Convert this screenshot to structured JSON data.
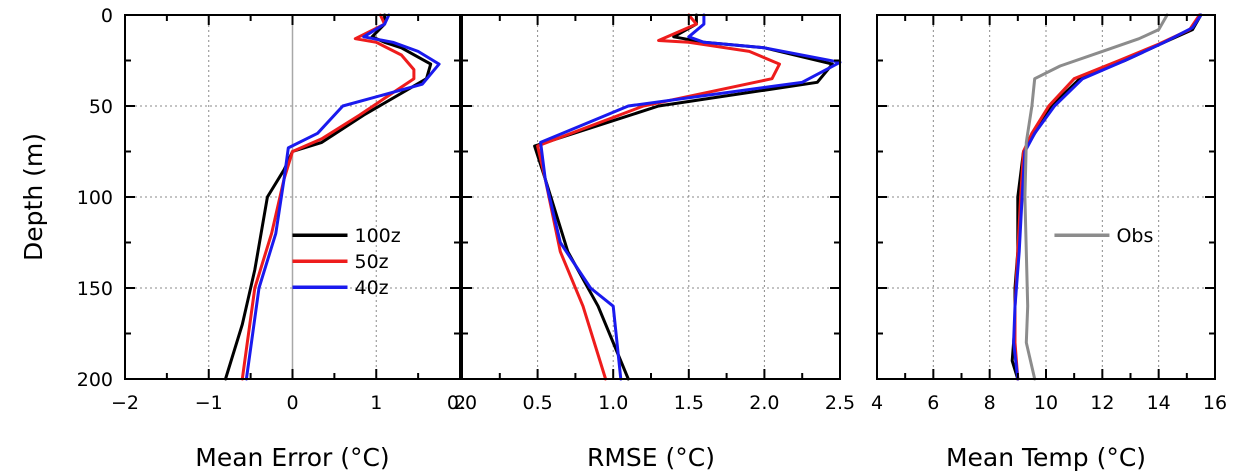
{
  "colors": {
    "100z": "#000000",
    "50z": "#ee1c1c",
    "40z": "#1a1aee",
    "Obs": "#8c8c8c"
  },
  "y_axis": {
    "title": "Depth (m)",
    "lim": [
      0,
      200
    ],
    "ticks": [
      0,
      50,
      100,
      150,
      200
    ],
    "tick_labels": [
      "0",
      "50",
      "100",
      "150",
      "200"
    ],
    "minor_ticks": [
      25,
      75,
      125,
      175
    ],
    "inverted": true
  },
  "chart_data": [
    {
      "type": "line",
      "title": "",
      "xlabel": "Mean Error (°C)",
      "ylabel": "Depth (m)",
      "xlim": [
        -2,
        2
      ],
      "ylim": [
        200,
        0
      ],
      "x_ticks": [
        -2,
        -1,
        0,
        1,
        2
      ],
      "x_tick_labels": [
        "−2",
        "−1",
        "0",
        "1",
        "2"
      ],
      "x_minor_ticks": [
        -1.5,
        -0.5,
        0.5,
        1.5
      ],
      "grid": true,
      "zero_line": true,
      "legend": {
        "position": "lower-center",
        "entries": [
          "100z",
          "50z",
          "40z"
        ]
      },
      "series": [
        {
          "name": "100z",
          "points": [
            [
              1.1,
              0
            ],
            [
              1.1,
              5
            ],
            [
              0.95,
              12
            ],
            [
              1.1,
              15
            ],
            [
              1.3,
              18
            ],
            [
              1.65,
              27
            ],
            [
              1.6,
              35
            ],
            [
              0.85,
              55
            ],
            [
              0.35,
              70
            ],
            [
              0.0,
              75
            ],
            [
              -0.1,
              85
            ],
            [
              -0.3,
              100
            ],
            [
              -0.45,
              140
            ],
            [
              -0.6,
              170
            ],
            [
              -0.8,
              200
            ]
          ]
        },
        {
          "name": "50z",
          "points": [
            [
              1.05,
              0
            ],
            [
              1.1,
              5
            ],
            [
              0.75,
              13
            ],
            [
              1.0,
              15
            ],
            [
              1.3,
              22
            ],
            [
              1.45,
              30
            ],
            [
              1.45,
              35
            ],
            [
              0.8,
              55
            ],
            [
              0.35,
              68
            ],
            [
              0.0,
              75
            ],
            [
              -0.1,
              90
            ],
            [
              -0.25,
              120
            ],
            [
              -0.45,
              150
            ],
            [
              -0.6,
              200
            ]
          ]
        },
        {
          "name": "40z",
          "points": [
            [
              1.15,
              0
            ],
            [
              1.1,
              5
            ],
            [
              0.85,
              12
            ],
            [
              1.2,
              15
            ],
            [
              1.5,
              20
            ],
            [
              1.75,
              27
            ],
            [
              1.55,
              38
            ],
            [
              0.6,
              50
            ],
            [
              0.3,
              65
            ],
            [
              -0.05,
              73
            ],
            [
              -0.1,
              90
            ],
            [
              -0.2,
              120
            ],
            [
              -0.4,
              150
            ],
            [
              -0.55,
              200
            ]
          ]
        }
      ]
    },
    {
      "type": "line",
      "title": "",
      "xlabel": "RMSE (°C)",
      "ylabel": "",
      "xlim": [
        0,
        2.5
      ],
      "ylim": [
        200,
        0
      ],
      "x_ticks": [
        0.0,
        0.5,
        1.0,
        1.5,
        2.0,
        2.5
      ],
      "x_tick_labels": [
        "0.0",
        "0.5",
        "1.0",
        "1.5",
        "2.0",
        "2.5"
      ],
      "x_minor_ticks": [
        0.25,
        0.75,
        1.25,
        1.75,
        2.25
      ],
      "grid": true,
      "zero_line": false,
      "series": [
        {
          "name": "100z",
          "points": [
            [
              1.55,
              0
            ],
            [
              1.55,
              5
            ],
            [
              1.4,
              12
            ],
            [
              1.6,
              15
            ],
            [
              2.0,
              18
            ],
            [
              2.45,
              27
            ],
            [
              2.35,
              37
            ],
            [
              1.3,
              50
            ],
            [
              0.48,
              72
            ],
            [
              0.55,
              90
            ],
            [
              0.7,
              130
            ],
            [
              0.9,
              160
            ],
            [
              1.1,
              200
            ]
          ]
        },
        {
          "name": "50z",
          "points": [
            [
              1.5,
              0
            ],
            [
              1.55,
              5
            ],
            [
              1.3,
              14
            ],
            [
              1.5,
              15
            ],
            [
              1.9,
              20
            ],
            [
              2.1,
              27
            ],
            [
              2.05,
              35
            ],
            [
              1.2,
              50
            ],
            [
              0.5,
              72
            ],
            [
              0.55,
              90
            ],
            [
              0.65,
              130
            ],
            [
              0.8,
              160
            ],
            [
              0.95,
              200
            ]
          ]
        },
        {
          "name": "40z",
          "points": [
            [
              1.6,
              0
            ],
            [
              1.6,
              5
            ],
            [
              1.5,
              12
            ],
            [
              1.6,
              15
            ],
            [
              2.0,
              18
            ],
            [
              2.5,
              26
            ],
            [
              2.25,
              37
            ],
            [
              1.1,
              50
            ],
            [
              0.52,
              70
            ],
            [
              0.55,
              90
            ],
            [
              0.65,
              125
            ],
            [
              0.85,
              150
            ],
            [
              1.0,
              160
            ],
            [
              1.05,
              200
            ]
          ]
        }
      ]
    },
    {
      "type": "line",
      "title": "",
      "xlabel": "Mean Temp (°C)",
      "ylabel": "",
      "xlim": [
        4,
        16
      ],
      "ylim": [
        200,
        0
      ],
      "x_ticks": [
        4,
        6,
        8,
        10,
        12,
        14,
        16
      ],
      "x_tick_labels": [
        "4",
        "6",
        "8",
        "10",
        "12",
        "14",
        "16"
      ],
      "x_minor_ticks": [
        5,
        7,
        9,
        11,
        13,
        15
      ],
      "grid": true,
      "zero_line": false,
      "legend": {
        "position": "center-right",
        "entries": [
          "Obs"
        ]
      },
      "series": [
        {
          "name": "100z",
          "points": [
            [
              15.5,
              0
            ],
            [
              15.2,
              8
            ],
            [
              14.2,
              15
            ],
            [
              12.8,
              25
            ],
            [
              11.2,
              35
            ],
            [
              10.2,
              50
            ],
            [
              9.6,
              65
            ],
            [
              9.2,
              75
            ],
            [
              9.0,
              100
            ],
            [
              9.0,
              130
            ],
            [
              8.9,
              150
            ],
            [
              8.9,
              170
            ],
            [
              8.8,
              190
            ],
            [
              9.0,
              200
            ]
          ]
        },
        {
          "name": "50z",
          "points": [
            [
              15.45,
              0
            ],
            [
              15.1,
              8
            ],
            [
              14.0,
              16
            ],
            [
              12.6,
              25
            ],
            [
              11.0,
              35
            ],
            [
              10.1,
              50
            ],
            [
              9.5,
              65
            ],
            [
              9.2,
              75
            ],
            [
              9.1,
              100
            ],
            [
              9.0,
              130
            ],
            [
              8.9,
              160
            ],
            [
              8.9,
              180
            ],
            [
              9.0,
              200
            ]
          ]
        },
        {
          "name": "40z",
          "points": [
            [
              15.5,
              0
            ],
            [
              15.2,
              7
            ],
            [
              14.2,
              15
            ],
            [
              12.8,
              25
            ],
            [
              11.3,
              35
            ],
            [
              10.3,
              50
            ],
            [
              9.6,
              65
            ],
            [
              9.25,
              75
            ],
            [
              9.15,
              100
            ],
            [
              9.05,
              130
            ],
            [
              8.9,
              160
            ],
            [
              8.85,
              180
            ],
            [
              9.0,
              200
            ]
          ]
        },
        {
          "name": "Obs",
          "points": [
            [
              14.3,
              0
            ],
            [
              14.0,
              8
            ],
            [
              13.3,
              13
            ],
            [
              12.0,
              20
            ],
            [
              10.5,
              28
            ],
            [
              9.6,
              35
            ],
            [
              9.5,
              50
            ],
            [
              9.3,
              70
            ],
            [
              9.25,
              100
            ],
            [
              9.3,
              130
            ],
            [
              9.35,
              160
            ],
            [
              9.3,
              180
            ],
            [
              9.6,
              200
            ]
          ]
        }
      ]
    }
  ]
}
